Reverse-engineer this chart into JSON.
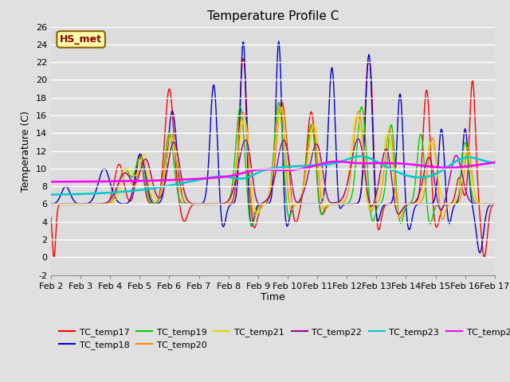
{
  "title": "Temperature Profile C",
  "xlabel": "Time",
  "ylabel": "Temperature (C)",
  "ylim": [
    -2,
    26
  ],
  "annotation": "HS_met",
  "series_colors": {
    "TC_temp17": "#FF0000",
    "TC_temp18": "#0000CD",
    "TC_temp19": "#00CC00",
    "TC_temp20": "#FF8C00",
    "TC_temp21": "#DDDD00",
    "TC_temp22": "#990099",
    "TC_temp23": "#00CCCC",
    "TC_temp24": "#FF00FF"
  },
  "background_color": "#E0E0E0",
  "plot_bg_color": "#DCDCDC",
  "title_fontsize": 11,
  "axis_label_fontsize": 9,
  "tick_label_fontsize": 8,
  "x_start": 2,
  "x_end": 17,
  "x_ticks": [
    2,
    3,
    4,
    5,
    6,
    7,
    8,
    9,
    10,
    11,
    12,
    13,
    14,
    15,
    16,
    17
  ],
  "x_tick_labels": [
    "Feb 2",
    "Feb 3",
    "Feb 4",
    "Feb 5",
    "Feb 6",
    "Feb 7",
    "Feb 8",
    "Feb 9",
    "Feb 10",
    "Feb 11",
    "Feb 12",
    "Feb 13",
    "Feb 14",
    "Feb 15",
    "Feb 16",
    "Feb 17"
  ]
}
